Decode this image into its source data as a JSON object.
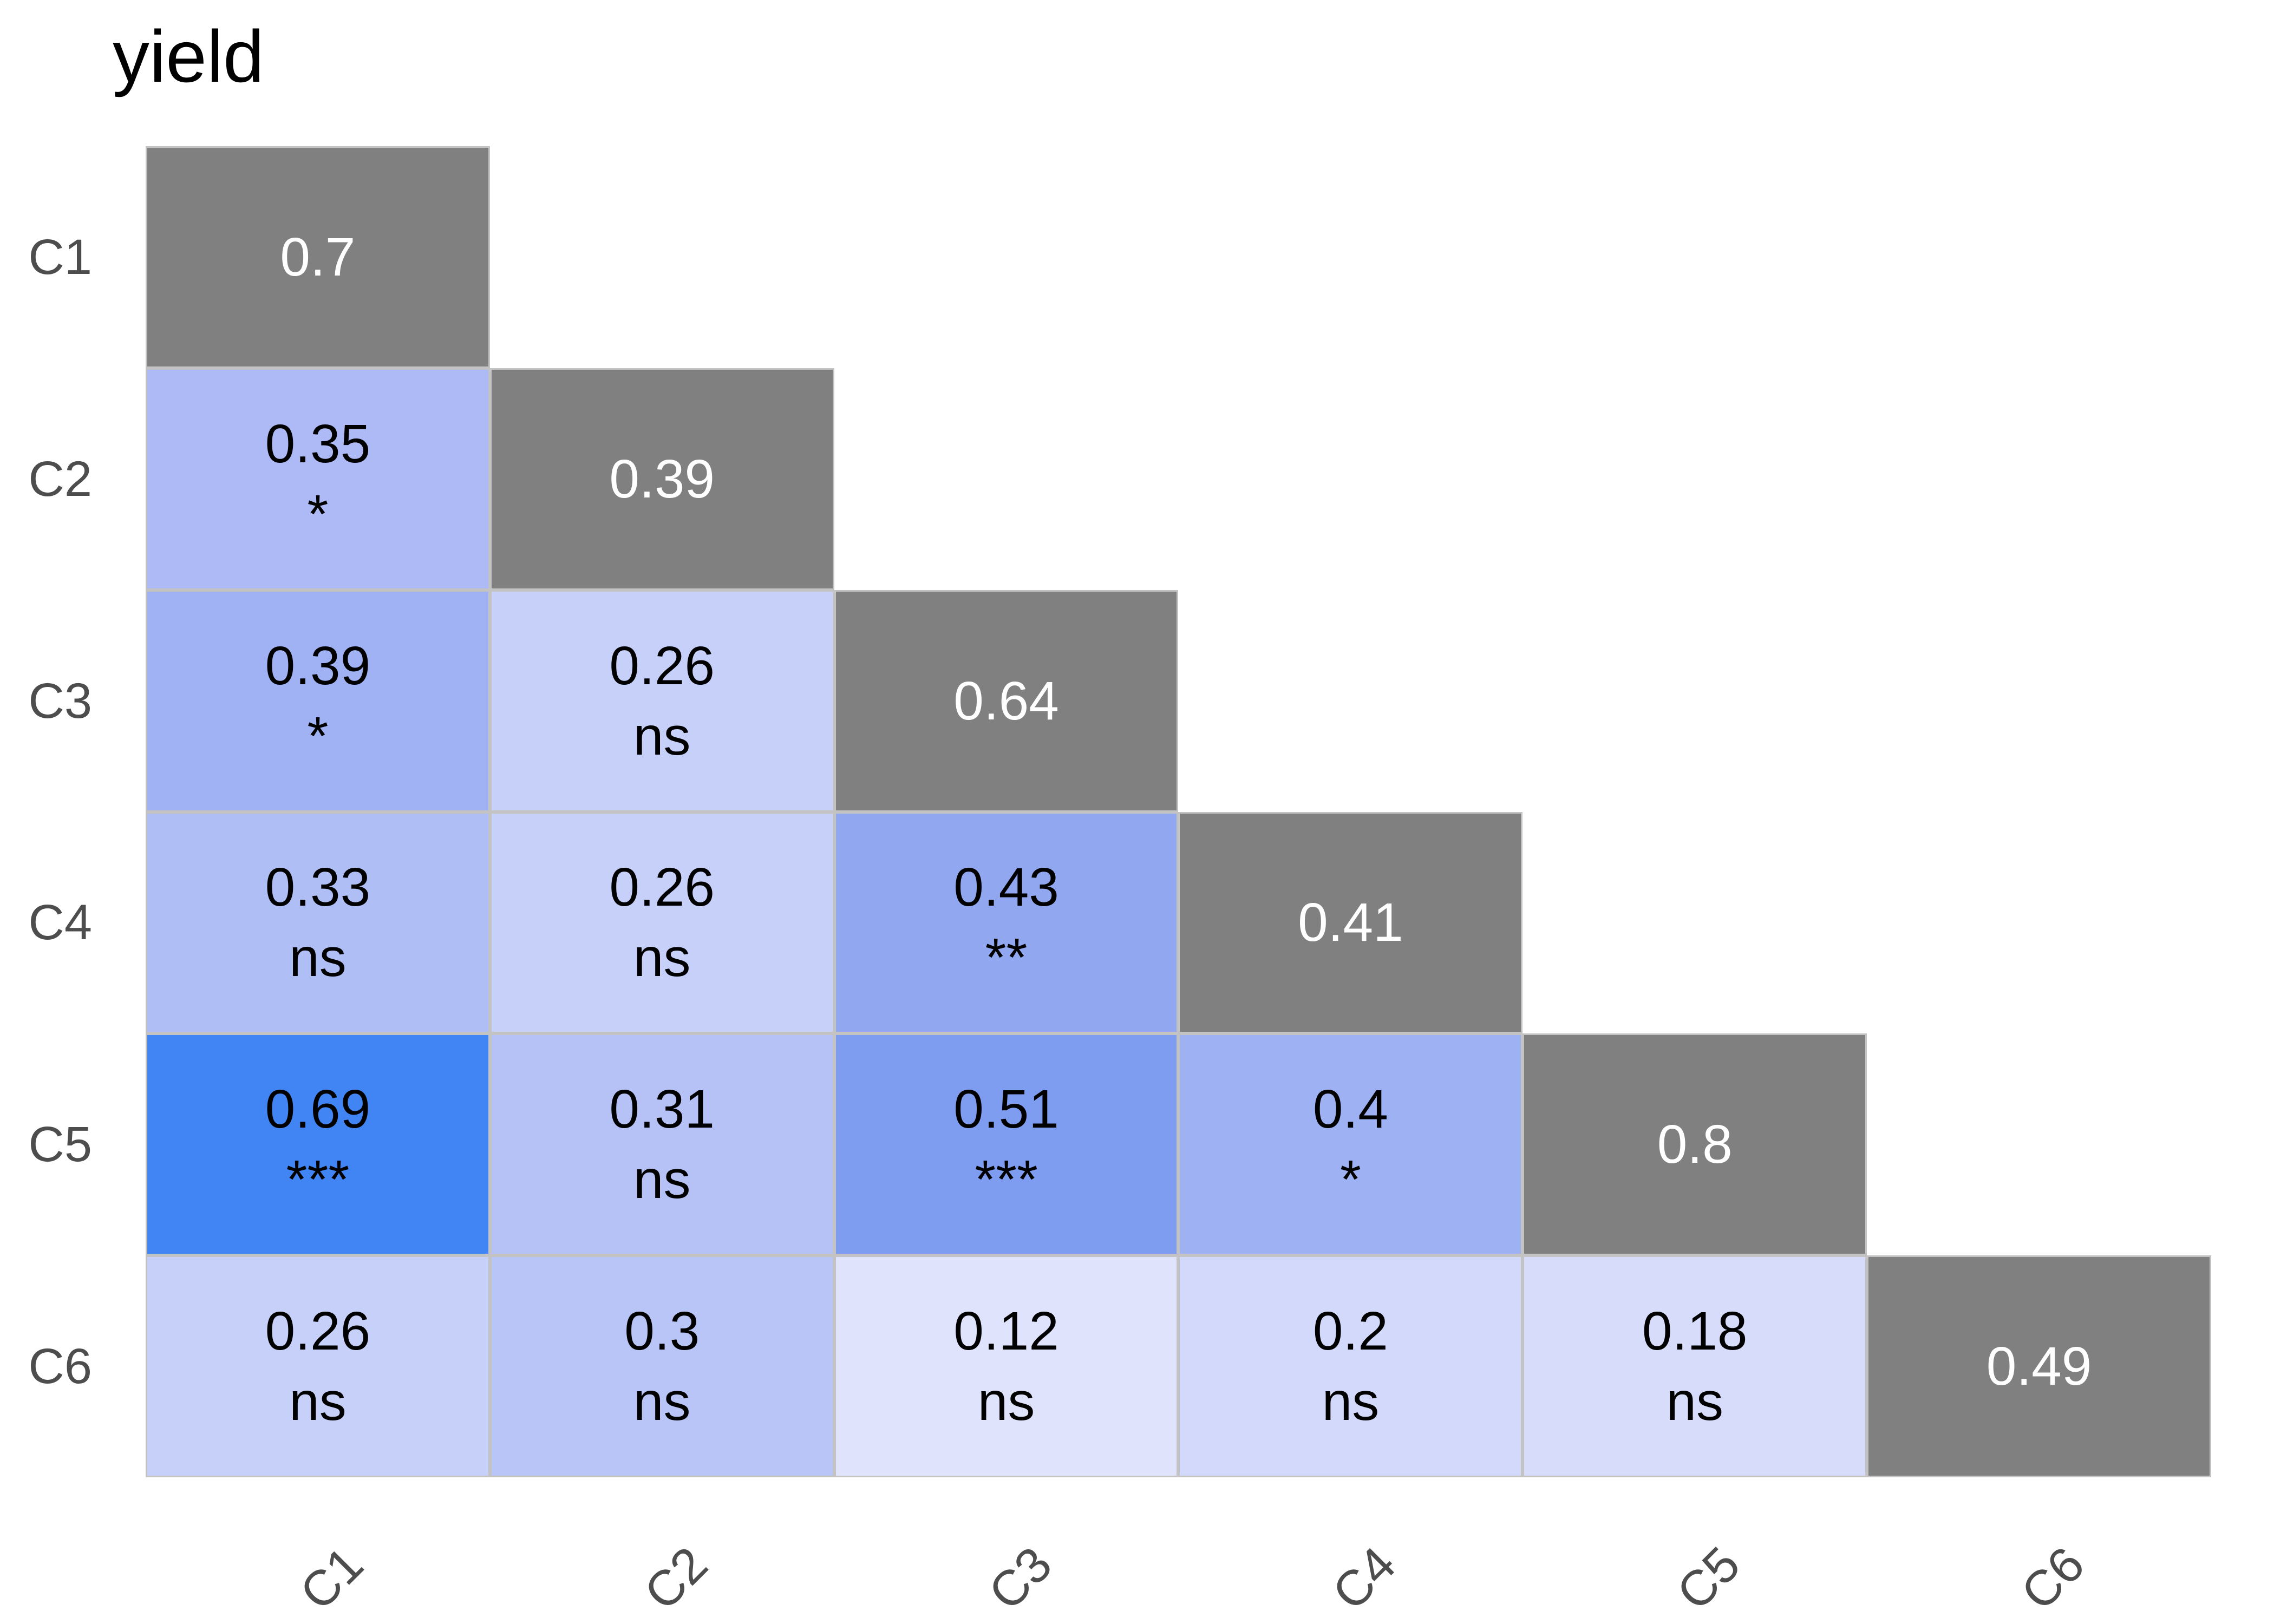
{
  "title": "yield",
  "chart_data": {
    "type": "heatmap",
    "subtype": "lower-triangular-correlation-matrix",
    "title": "yield",
    "variables": [
      "C1",
      "C2",
      "C3",
      "C4",
      "C5",
      "C6"
    ],
    "x_axis_label_rotation_deg": -45,
    "legend": false,
    "grid_line_color": "#c3c3c3",
    "axis_label_color": "#4d4d4d",
    "title_color": "#000000",
    "diagonal_style": {
      "bg": "#808080",
      "fg": "#ffffff"
    },
    "diagonal_values": [
      0.7,
      0.39,
      0.64,
      0.41,
      0.8,
      0.49
    ],
    "cells": [
      {
        "row": "C1",
        "col": "C1",
        "value": 0.7,
        "significance": "",
        "diagonal": true,
        "bg": "#808080",
        "fg": "#ffffff"
      },
      {
        "row": "C2",
        "col": "C1",
        "value": 0.35,
        "significance": "*",
        "diagonal": false,
        "bg": "#adbaf5",
        "fg": "#000000"
      },
      {
        "row": "C2",
        "col": "C2",
        "value": 0.39,
        "significance": "",
        "diagonal": true,
        "bg": "#808080",
        "fg": "#ffffff"
      },
      {
        "row": "C3",
        "col": "C1",
        "value": 0.39,
        "significance": "*",
        "diagonal": false,
        "bg": "#a0b2f3",
        "fg": "#000000"
      },
      {
        "row": "C3",
        "col": "C2",
        "value": 0.26,
        "significance": "ns",
        "diagonal": false,
        "bg": "#c6d0f8",
        "fg": "#000000"
      },
      {
        "row": "C3",
        "col": "C3",
        "value": 0.64,
        "significance": "",
        "diagonal": true,
        "bg": "#808080",
        "fg": "#ffffff"
      },
      {
        "row": "C4",
        "col": "C1",
        "value": 0.33,
        "significance": "ns",
        "diagonal": false,
        "bg": "#b0bef6",
        "fg": "#000000"
      },
      {
        "row": "C4",
        "col": "C2",
        "value": 0.26,
        "significance": "ns",
        "diagonal": false,
        "bg": "#c6d0f8",
        "fg": "#000000"
      },
      {
        "row": "C4",
        "col": "C3",
        "value": 0.43,
        "significance": "**",
        "diagonal": false,
        "bg": "#91a8f1",
        "fg": "#000000"
      },
      {
        "row": "C4",
        "col": "C4",
        "value": 0.41,
        "significance": "",
        "diagonal": true,
        "bg": "#808080",
        "fg": "#ffffff"
      },
      {
        "row": "C5",
        "col": "C1",
        "value": 0.69,
        "significance": "***",
        "diagonal": false,
        "bg": "#4184f3",
        "fg": "#000000"
      },
      {
        "row": "C5",
        "col": "C2",
        "value": 0.31,
        "significance": "ns",
        "diagonal": false,
        "bg": "#b6c2f6",
        "fg": "#000000"
      },
      {
        "row": "C5",
        "col": "C3",
        "value": 0.51,
        "significance": "***",
        "diagonal": false,
        "bg": "#7e9cf0",
        "fg": "#000000"
      },
      {
        "row": "C5",
        "col": "C4",
        "value": 0.4,
        "significance": "*",
        "diagonal": false,
        "bg": "#9db1f3",
        "fg": "#000000"
      },
      {
        "row": "C5",
        "col": "C5",
        "value": 0.8,
        "significance": "",
        "diagonal": true,
        "bg": "#808080",
        "fg": "#ffffff"
      },
      {
        "row": "C6",
        "col": "C1",
        "value": 0.26,
        "significance": "ns",
        "diagonal": false,
        "bg": "#c6d0f8",
        "fg": "#000000"
      },
      {
        "row": "C6",
        "col": "C2",
        "value": 0.3,
        "significance": "ns",
        "diagonal": false,
        "bg": "#b9c4f7",
        "fg": "#000000"
      },
      {
        "row": "C6",
        "col": "C3",
        "value": 0.12,
        "significance": "ns",
        "diagonal": false,
        "bg": "#dfe4fc",
        "fg": "#000000"
      },
      {
        "row": "C6",
        "col": "C4",
        "value": 0.2,
        "significance": "ns",
        "diagonal": false,
        "bg": "#d2d9fa",
        "fg": "#000000"
      },
      {
        "row": "C6",
        "col": "C5",
        "value": 0.18,
        "significance": "ns",
        "diagonal": false,
        "bg": "#d6dcfa",
        "fg": "#000000"
      },
      {
        "row": "C6",
        "col": "C6",
        "value": 0.49,
        "significance": "",
        "diagonal": true,
        "bg": "#808080",
        "fg": "#ffffff"
      }
    ]
  }
}
